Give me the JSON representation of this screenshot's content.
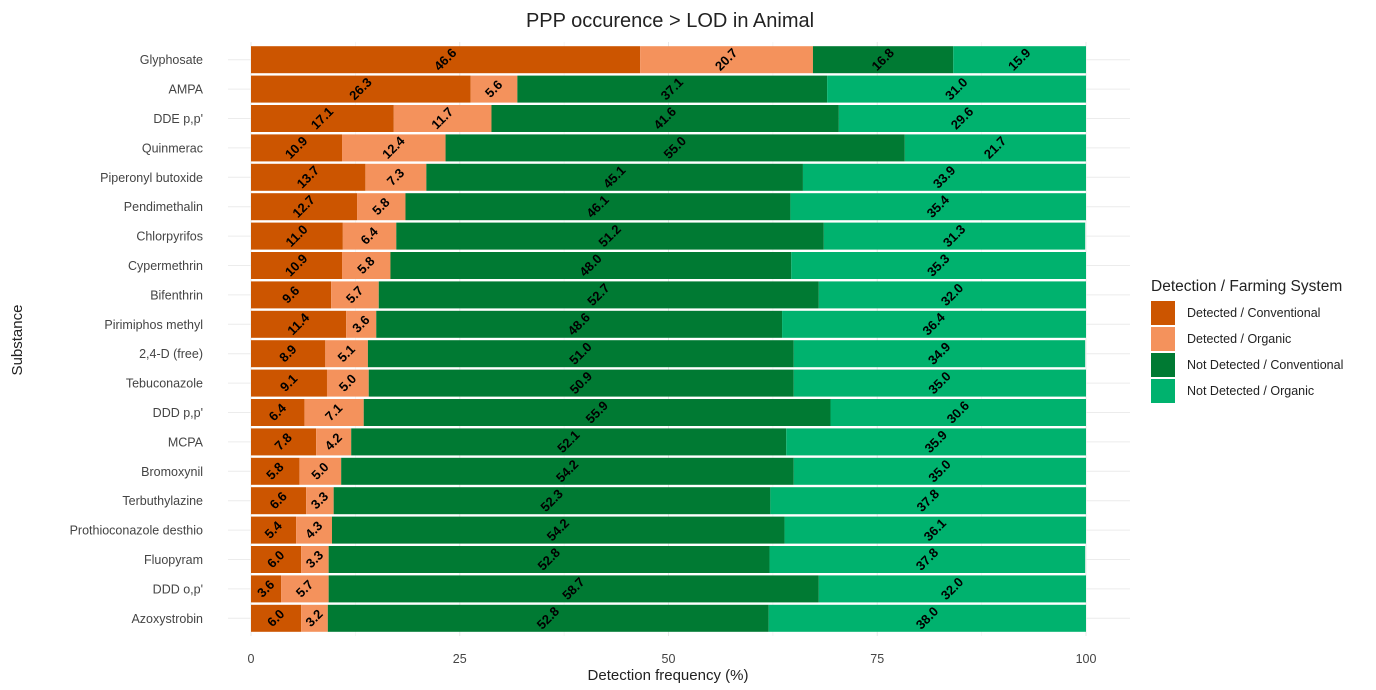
{
  "chart_data": {
    "type": "bar",
    "orientation": "horizontal",
    "stacked": true,
    "title": "PPP occurence > LOD in Animal",
    "xlabel": "Detection frequency (%)",
    "ylabel": "Substance",
    "xlim": [
      0,
      100
    ],
    "xticks": [
      "0",
      "25",
      "50",
      "75",
      "100"
    ],
    "grid": true,
    "legend": {
      "title": "Detection / Farming System",
      "position": "right"
    },
    "categories": [
      "Glyphosate",
      "AMPA",
      "DDE p,p'",
      "Quinmerac",
      "Piperonyl butoxide",
      "Pendimethalin",
      "Chlorpyrifos",
      "Cypermethrin",
      "Bifenthrin",
      "Pirimiphos methyl",
      "2,4-D (free)",
      "Tebuconazole",
      "DDD p,p'",
      "MCPA",
      "Bromoxynil",
      "Terbuthylazine",
      "Prothioconazole desthio",
      "Fluopyram",
      "DDD o,p'",
      "Azoxystrobin"
    ],
    "series": [
      {
        "name": "Detected / Conventional",
        "color": "#CC5500",
        "values": [
          46.6,
          26.3,
          17.1,
          10.9,
          13.7,
          12.7,
          11.0,
          10.9,
          9.6,
          11.4,
          8.9,
          9.1,
          6.4,
          7.8,
          5.8,
          6.6,
          5.4,
          6.0,
          3.6,
          6.0
        ],
        "labels": [
          "46.6",
          "26.3",
          "17.1",
          "10.9",
          "13.7",
          "12.7",
          "11.0",
          "10.9",
          "9.6",
          "11.4",
          "8.9",
          "9.1",
          "6.4",
          "7.8",
          "5.8",
          "6.6",
          "5.4",
          "6.0",
          "3.6",
          "6.0"
        ]
      },
      {
        "name": "Detected / Organic",
        "color": "#F4925C",
        "values": [
          20.7,
          5.6,
          11.7,
          12.4,
          7.3,
          5.8,
          6.4,
          5.8,
          5.7,
          3.6,
          5.1,
          5.0,
          7.1,
          4.2,
          5.0,
          3.3,
          4.3,
          3.3,
          5.7,
          3.2
        ],
        "labels": [
          "20.7",
          "5.6",
          "11.7",
          "12.4",
          "7.3",
          "5.8",
          "6.4",
          "5.8",
          "5.7",
          "3.6",
          "5.1",
          "5.0",
          "7.1",
          "4.2",
          "5.0",
          "3.3",
          "4.3",
          "3.3",
          "5.7",
          "3.2"
        ]
      },
      {
        "name": "Not Detected / Conventional",
        "color": "#007A33",
        "values": [
          16.8,
          37.1,
          41.6,
          55.0,
          45.1,
          46.1,
          51.2,
          48.0,
          52.7,
          48.6,
          51.0,
          50.9,
          55.9,
          52.1,
          54.2,
          52.3,
          54.2,
          52.8,
          58.7,
          52.8
        ],
        "labels": [
          "16.8",
          "37.1",
          "41.6",
          "55.0",
          "45.1",
          "46.1",
          "51.2",
          "48.0",
          "52.7",
          "48.6",
          "51.0",
          "50.9",
          "55.9",
          "52.1",
          "54.2",
          "52.3",
          "54.2",
          "52.8",
          "58.7",
          "52.8"
        ]
      },
      {
        "name": "Not Detected / Organic",
        "color": "#00B26E",
        "values": [
          15.9,
          31.0,
          29.6,
          21.7,
          33.9,
          35.4,
          31.3,
          35.3,
          32.0,
          36.4,
          34.9,
          35.0,
          30.6,
          35.9,
          35.0,
          37.8,
          36.1,
          37.8,
          32.0,
          38.0
        ],
        "labels": [
          "15.9",
          "31.0",
          "29.6",
          "21.7",
          "33.9",
          "35.4",
          "31.3",
          "35.3",
          "32.0",
          "36.4",
          "34.9",
          "35.0",
          "30.6",
          "35.9",
          "35.0",
          "37.8",
          "36.1",
          "37.8",
          "32.0",
          "38.0"
        ]
      }
    ]
  }
}
